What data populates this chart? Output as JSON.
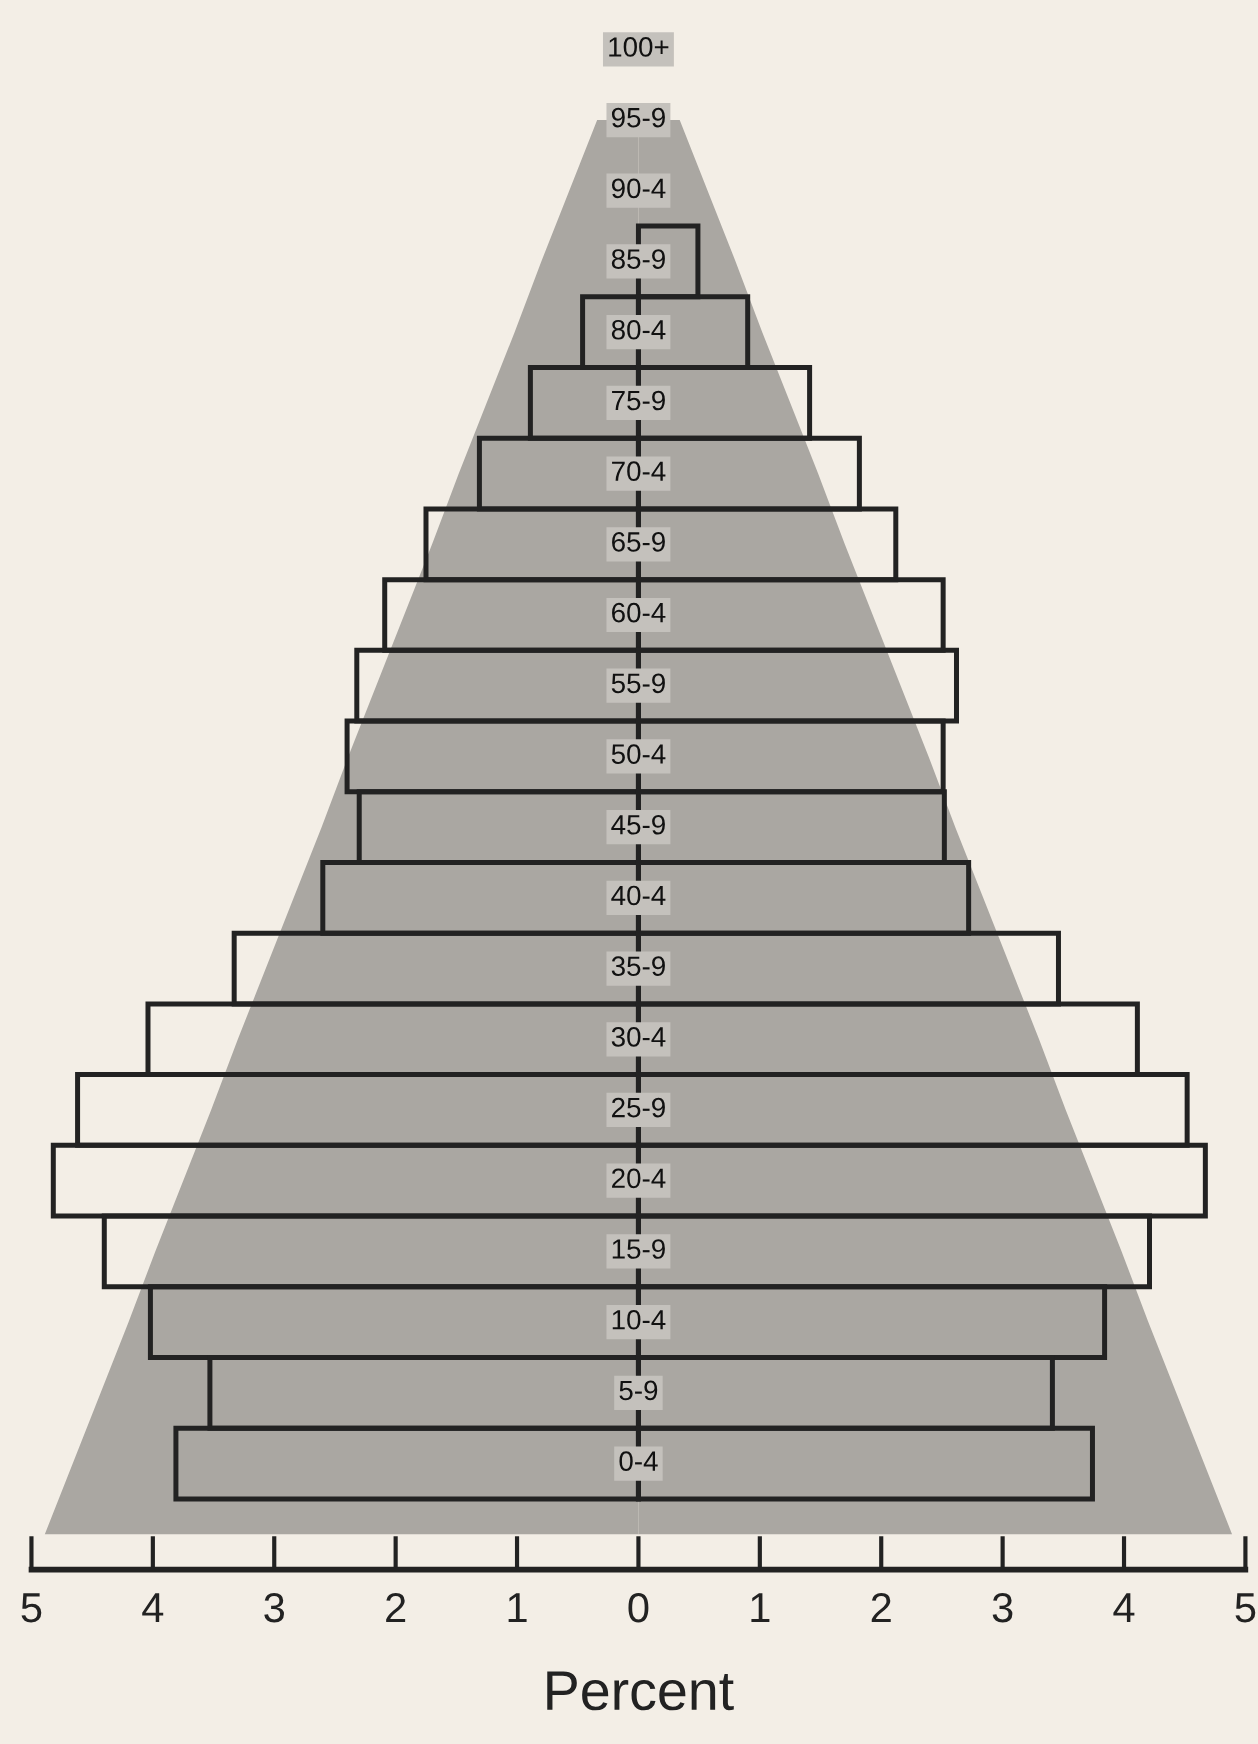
{
  "chart_data": {
    "type": "bar",
    "orientation": "horizontal",
    "stacked": false,
    "xlabel": "Percent",
    "categories": [
      "100+",
      "95-9",
      "90-4",
      "85-9",
      "80-4",
      "75-9",
      "70-4",
      "65-9",
      "60-4",
      "55-9",
      "50-4",
      "45-9",
      "40-4",
      "35-9",
      "30-4",
      "25-9",
      "20-4",
      "15-9",
      "10-4",
      "5-9",
      "0-4",
      null
    ],
    "series": [
      {
        "type": "area",
        "color": "#aaa7a2",
        "values": [
          null,
          -0.34,
          -0.57,
          -0.8,
          -1.02,
          -1.25,
          -1.48,
          -1.7,
          -1.93,
          -2.16,
          -2.39,
          -2.61,
          -2.84,
          -3.07,
          -3.3,
          -3.52,
          -3.75,
          -3.98,
          -4.2,
          -4.43,
          -4.66,
          -4.89
        ]
      },
      {
        "type": "area",
        "color": "#aaa7a2",
        "values": [
          null,
          0.34,
          0.57,
          0.8,
          1.02,
          1.25,
          1.48,
          1.7,
          1.93,
          2.16,
          2.39,
          2.61,
          2.84,
          3.07,
          3.3,
          3.52,
          3.75,
          3.98,
          4.2,
          4.43,
          4.66,
          4.89
        ]
      },
      {
        "color": "#222222",
        "values": [
          null,
          null,
          null,
          null,
          -0.46,
          -0.89,
          -1.31,
          -1.75,
          -2.09,
          -2.32,
          -2.4,
          -2.3,
          -2.6,
          -3.33,
          -4.04,
          -4.62,
          -4.82,
          -4.4,
          -4.02,
          -3.53,
          -3.81,
          null
        ]
      },
      {
        "color": "#222222",
        "values": [
          null,
          null,
          null,
          0.49,
          0.9,
          1.41,
          1.82,
          2.12,
          2.51,
          2.62,
          2.51,
          2.52,
          2.72,
          3.46,
          4.11,
          4.52,
          4.67,
          4.21,
          3.84,
          3.41,
          3.74,
          null
        ]
      }
    ],
    "xlim": [
      -5,
      5
    ],
    "xticks": [
      {
        "value": -5,
        "label": "5"
      },
      {
        "value": -4,
        "label": "4"
      },
      {
        "value": -3,
        "label": "3"
      },
      {
        "value": -2,
        "label": "2"
      },
      {
        "value": -1,
        "label": "1"
      },
      0,
      1,
      2,
      3,
      4,
      5
    ],
    "grid": false
  }
}
